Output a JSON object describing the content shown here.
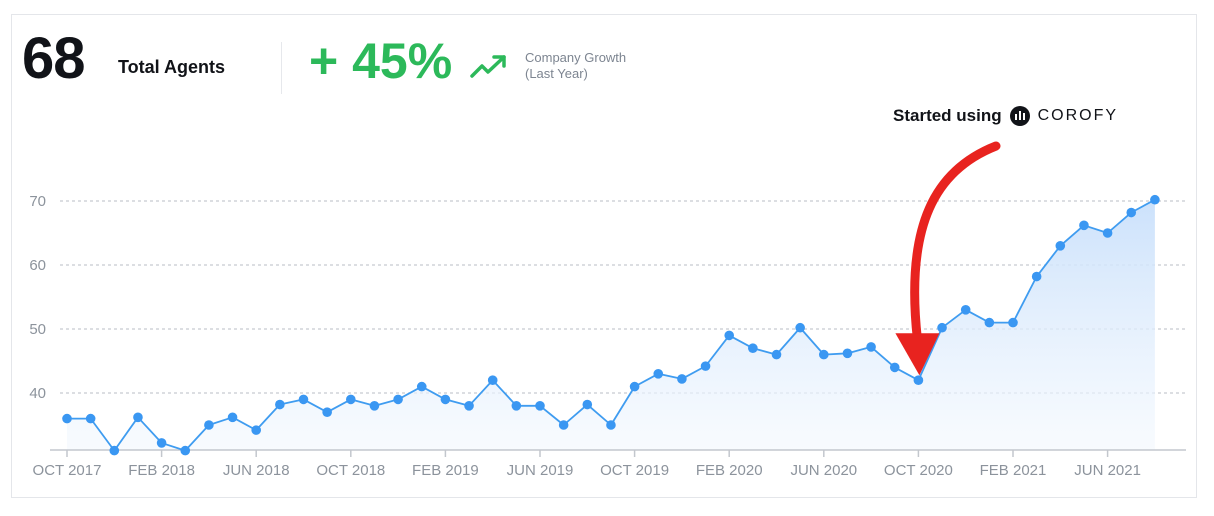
{
  "header": {
    "total_value": "68",
    "total_label": "Total Agents",
    "growth_value": "+ 45%",
    "growth_note_line1": "Company Growth",
    "growth_note_line2": "(Last Year)",
    "growth_icon": "trending-up-icon"
  },
  "annotation": {
    "text": "Started using",
    "brand": "COROFY",
    "brand_icon": "corofy-logo-icon",
    "arrow_color": "#e8231f",
    "target_index": 36
  },
  "colors": {
    "line": "#3f9cf0",
    "point": "#3a97f2",
    "area_top": "#c9e0fb",
    "area_bottom": "#f3f8fe",
    "growth": "#2cb95a"
  },
  "chart_data": {
    "type": "area",
    "title": "",
    "xlabel": "",
    "ylabel": "",
    "ylim": [
      31,
      72
    ],
    "y_ticks": [
      40,
      50,
      60,
      70
    ],
    "grid": "horizontal dashed",
    "x_tick_labels": [
      "OCT 2017",
      "FEB 2018",
      "JUN 2018",
      "OCT 2018",
      "FEB 2019",
      "JUN 2019",
      "OCT 2019",
      "FEB 2020",
      "JUN 2020",
      "OCT 2020",
      "FEB 2021",
      "JUN 2021"
    ],
    "x_tick_indices": [
      0,
      4,
      8,
      12,
      16,
      20,
      24,
      28,
      32,
      36,
      40,
      44
    ],
    "series": [
      {
        "values": [
          36,
          36,
          31,
          36.2,
          32.2,
          31,
          35,
          36.2,
          34.2,
          38.2,
          39,
          37,
          39,
          38,
          39,
          41,
          39,
          38,
          42,
          38,
          38,
          35,
          38.2,
          35,
          41,
          43,
          42.2,
          44.2,
          49,
          47,
          46,
          50.2,
          46,
          46.2,
          47.2,
          44,
          42,
          50.2,
          53,
          51,
          51,
          58.2,
          63,
          66.2,
          65,
          68.2,
          70.2
        ]
      }
    ]
  }
}
